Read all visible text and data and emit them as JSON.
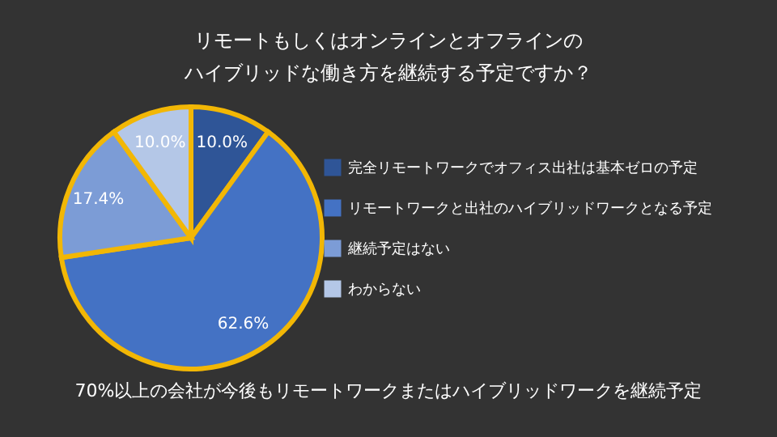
{
  "chart_data": {
    "type": "pie",
    "title": [
      "リモートもしくはオンラインとオフラインの",
      "ハイブリッドな働き方を継続する予定ですか？"
    ],
    "categories": [
      "完全リモートワークでオフィス出社は基本ゼロの予定",
      "リモートワークと出社のハイブリッドワークとなる予定",
      "継続予定はない",
      "わからない"
    ],
    "values": [
      10.0,
      62.6,
      17.4,
      10.0
    ],
    "colors": [
      "#2f5597",
      "#4472c4",
      "#7c9cd6",
      "#b4c7e7"
    ],
    "value_labels": [
      "10.0%",
      "62.6%",
      "17.4%",
      "10.0%"
    ],
    "legend": "right",
    "annotations": [
      "70%以上の会社が今後もリモートワークまたはハイブリッドワークを継続予定"
    ]
  }
}
